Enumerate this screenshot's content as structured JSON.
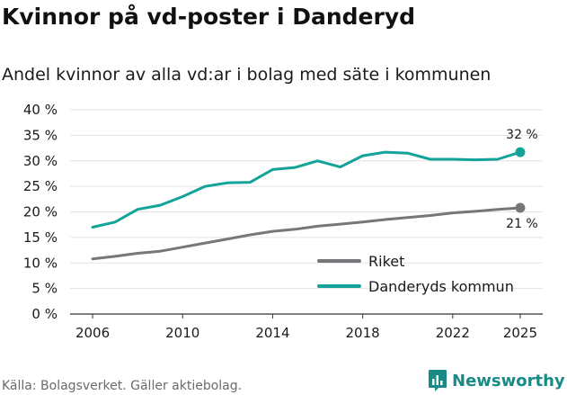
{
  "title": "Kvinnor på vd-poster i Danderyd",
  "subtitle": "Andel kvinnor av alla vd:ar i bolag med säte i kommunen",
  "source": "Källa: Bolagsverket. Gäller aktiebolag.",
  "brand": "Newsworthy",
  "colors": {
    "riket": "#76767b",
    "danderyd": "#13a399",
    "brand": "#1a8a86"
  },
  "chart_data": {
    "type": "line",
    "title": "Kvinnor på vd-poster i Danderyd",
    "xlabel": "",
    "ylabel": "",
    "xlim": [
      2005,
      2026
    ],
    "ylim": [
      0,
      40
    ],
    "x_ticks": [
      2006,
      2010,
      2014,
      2018,
      2022,
      2025
    ],
    "y_ticks": [
      0,
      5,
      10,
      15,
      20,
      25,
      30,
      35,
      40
    ],
    "y_tick_suffix": " %",
    "grid": "horizontal",
    "x": [
      2006,
      2007,
      2008,
      2009,
      2010,
      2011,
      2012,
      2013,
      2014,
      2015,
      2016,
      2017,
      2018,
      2019,
      2020,
      2021,
      2022,
      2023,
      2024,
      2025
    ],
    "series": [
      {
        "name": "Riket",
        "values": [
          10.8,
          11.3,
          11.9,
          12.3,
          13.1,
          13.9,
          14.7,
          15.5,
          16.2,
          16.6,
          17.2,
          17.6,
          18.0,
          18.5,
          18.9,
          19.3,
          19.8,
          20.1,
          20.5,
          20.8
        ],
        "end_label": "21 %"
      },
      {
        "name": "Danderyds kommun",
        "values": [
          17.0,
          18.0,
          20.5,
          21.3,
          23.0,
          25.0,
          25.7,
          25.8,
          28.3,
          28.7,
          30.0,
          28.8,
          31.0,
          31.7,
          31.5,
          30.3,
          30.3,
          30.2,
          30.3,
          31.7
        ],
        "end_label": "32 %"
      }
    ],
    "legend": [
      "Riket",
      "Danderyds kommun"
    ],
    "legend_position": "lower-right"
  }
}
